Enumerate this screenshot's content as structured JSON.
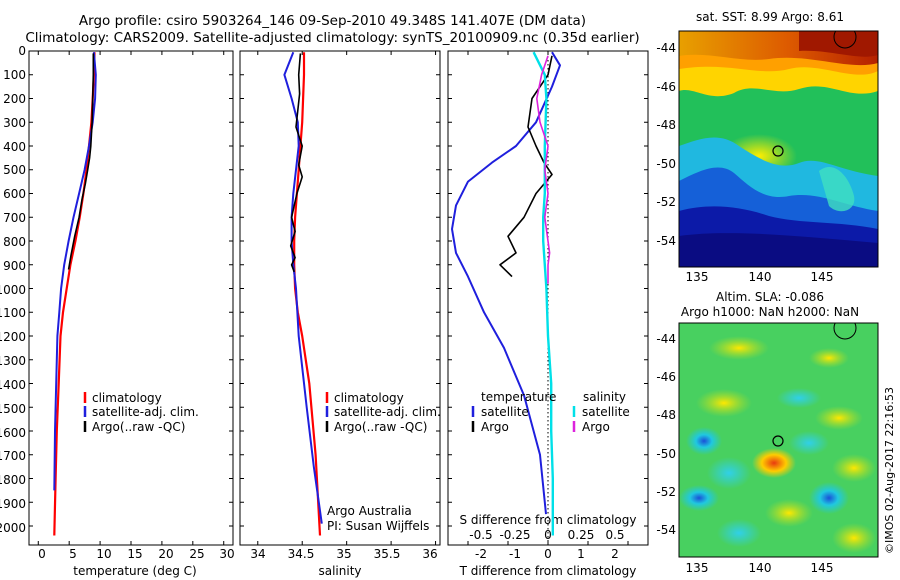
{
  "header": {
    "title_line1": "Argo profile: csiro 5903264_146 09-Sep-2010 49.348S 141.407E (DM data)",
    "title_line2": "Climatology: CARS2009. Satellite-adjusted climatology: synTS_20100909.nc (0.35d earlier)"
  },
  "colors": {
    "climatology": "#ff0000",
    "satellite": "#1f1fdd",
    "argo": "#000000",
    "salinity_satellite": "#00e0e8",
    "salinity_argo": "#dd22dd"
  },
  "footer": {
    "credit": "©IMOS 02-Aug-2017 22:16:53",
    "source_label_line1": "Argo Australia",
    "source_label_line2": "PI: Susan Wijffels"
  },
  "chart_data": [
    {
      "type": "line",
      "xlabel": "temperature (deg C)",
      "ylabel": "",
      "xlim": [
        -1.5,
        31.5
      ],
      "ylim": [
        2080,
        0
      ],
      "y_inverted": true,
      "x_ticks": [
        "0",
        "5",
        "10",
        "15",
        "20",
        "25",
        "30"
      ],
      "y_ticks": [
        "0",
        "100",
        "200",
        "300",
        "400",
        "500",
        "600",
        "700",
        "800",
        "900",
        "1000",
        "1100",
        "1200",
        "1300",
        "1400",
        "1500",
        "1600",
        "1700",
        "1800",
        "1900",
        "2000"
      ],
      "legend": {
        "placement": "center",
        "entries": [
          "climatology",
          "satellite-adj. clim.",
          "Argo(..raw -QC)"
        ]
      },
      "series": [
        {
          "name": "climatology",
          "color": "#ff0000",
          "x": [
            9.1,
            9.0,
            8.8,
            8.6,
            8.2,
            7.8,
            7.3,
            6.7,
            6.0,
            5.2,
            4.6,
            4.0,
            3.6,
            3.3,
            3.0,
            2.8,
            2.6
          ],
          "y": [
            5,
            100,
            200,
            300,
            400,
            500,
            600,
            700,
            800,
            900,
            1000,
            1100,
            1200,
            1400,
            1600,
            1800,
            2040
          ]
        },
        {
          "name": "satellite-adj. clim.",
          "color": "#1f1fdd",
          "x": [
            9.0,
            9.3,
            9.2,
            8.8,
            8.2,
            7.5,
            6.6,
            5.7,
            4.9,
            4.2,
            3.7,
            3.4,
            3.1,
            2.9,
            2.7,
            2.6
          ],
          "y": [
            5,
            100,
            200,
            300,
            400,
            500,
            600,
            700,
            800,
            900,
            1000,
            1100,
            1200,
            1400,
            1600,
            1850
          ]
        },
        {
          "name": "Argo(..raw -QC)",
          "color": "#000000",
          "x": [
            8.9,
            8.9,
            8.8,
            8.7,
            8.5,
            8.3,
            8.0,
            7.6,
            7.1,
            6.6,
            5.9,
            5.3,
            4.9
          ],
          "y": [
            10,
            100,
            200,
            300,
            400,
            450,
            500,
            560,
            620,
            700,
            780,
            860,
            920
          ]
        }
      ]
    },
    {
      "type": "line",
      "xlabel": "salinity",
      "ylabel": "",
      "xlim": [
        33.8,
        36.05
      ],
      "ylim": [
        2080,
        0
      ],
      "y_inverted": true,
      "x_ticks": [
        "34",
        "34.5",
        "35",
        "35.5",
        "36"
      ],
      "legend": {
        "placement": "center",
        "entries": [
          "climatology",
          "satellite-adj. clim.",
          "Argo(..raw -QC)"
        ]
      },
      "series": [
        {
          "name": "climatology",
          "color": "#ff0000",
          "x": [
            34.52,
            34.52,
            34.51,
            34.5,
            34.48,
            34.46,
            34.44,
            34.42,
            34.41,
            34.41,
            34.42,
            34.45,
            34.5,
            34.58,
            34.65,
            34.7
          ],
          "y": [
            5,
            100,
            200,
            300,
            400,
            500,
            600,
            700,
            800,
            900,
            1000,
            1100,
            1200,
            1400,
            1700,
            2040
          ]
        },
        {
          "name": "satellite-adj. clim.",
          "color": "#1f1fdd",
          "x": [
            34.4,
            34.3,
            34.38,
            34.45,
            34.46,
            34.43,
            34.4,
            34.38,
            34.38,
            34.4,
            34.43,
            34.46,
            34.55,
            34.63,
            34.72
          ],
          "y": [
            5,
            100,
            200,
            300,
            400,
            500,
            600,
            700,
            800,
            900,
            1000,
            1200,
            1500,
            1750,
            1990
          ]
        },
        {
          "name": "Argo(..raw -QC)",
          "color": "#000000",
          "x": [
            34.48,
            34.46,
            34.47,
            34.43,
            34.5,
            34.46,
            34.5,
            34.44,
            34.38,
            34.42,
            34.37,
            34.42,
            34.38,
            34.41
          ],
          "y": [
            10,
            100,
            180,
            320,
            400,
            480,
            530,
            600,
            700,
            760,
            820,
            870,
            900,
            930
          ]
        }
      ]
    },
    {
      "type": "line",
      "xlabel": "T difference from climatology",
      "secondary_xlabel": "S difference from climatology",
      "xlim": [
        -2.5,
        2.5
      ],
      "secondary_xlim": [
        -0.625,
        0.625
      ],
      "ylim": [
        2080,
        0
      ],
      "y_inverted": true,
      "x_ticks": [
        "-2",
        "-1",
        "0",
        "1",
        "2"
      ],
      "secondary_x_ticks": [
        "-0.5",
        "-0.25",
        "0",
        "0.25",
        "0.5"
      ],
      "zero_line": "dotted",
      "legend": {
        "placement": "center",
        "temperature_header": "temperature",
        "salinity_header": "salinity",
        "entries": [
          "satellite",
          "Argo",
          "satellite",
          "Argo"
        ]
      },
      "series": [
        {
          "name": "temperature satellite",
          "color": "#1f1fdd",
          "x": [
            0.1,
            0.3,
            0.1,
            -0.3,
            -0.8,
            -1.4,
            -2.0,
            -2.3,
            -2.4,
            -2.3,
            -2.0,
            -1.6,
            -1.1,
            -0.6,
            -0.2,
            -0.05
          ],
          "y": [
            5,
            60,
            150,
            300,
            400,
            470,
            550,
            650,
            750,
            850,
            950,
            1100,
            1250,
            1450,
            1700,
            1950
          ]
        },
        {
          "name": "temperature Argo",
          "color": "#000000",
          "x": [
            0.1,
            0.0,
            -0.4,
            -0.5,
            -0.3,
            -0.1,
            0.1,
            -0.3,
            -0.6,
            -1.0,
            -0.8,
            -1.2,
            -0.9
          ],
          "y": [
            20,
            100,
            200,
            320,
            400,
            470,
            520,
            600,
            700,
            780,
            850,
            900,
            950
          ]
        },
        {
          "name": "salinity satellite",
          "color": "#00e0e8",
          "x": [
            -0.09,
            -0.02,
            -0.01,
            -0.02,
            -0.02,
            -0.03,
            -0.03,
            -0.02,
            -0.01,
            0.0,
            0.02,
            0.02,
            0.03,
            0.03
          ],
          "y": [
            5,
            100,
            200,
            400,
            600,
            700,
            800,
            900,
            1000,
            1200,
            1400,
            1600,
            1800,
            2040
          ]
        },
        {
          "name": "salinity Argo",
          "color": "#dd22dd",
          "x": [
            0.0,
            -0.04,
            -0.07,
            -0.05,
            0.0,
            -0.02,
            0.0,
            -0.02,
            0.0,
            0.01,
            0.0,
            0.0
          ],
          "y": [
            20,
            100,
            200,
            300,
            400,
            500,
            600,
            700,
            800,
            850,
            900,
            980
          ]
        }
      ]
    },
    {
      "type": "heatmap",
      "title": "sat. SST: 8.99 Argo: 8.61",
      "x_ticks": [
        "135",
        "140",
        "145"
      ],
      "y_ticks": [
        "-44",
        "-46",
        "-48",
        "-50",
        "-52",
        "-54"
      ],
      "xlim": [
        133.5,
        149.5
      ],
      "ylim": [
        -55.5,
        -43.2
      ],
      "marker": {
        "lon": 141.4,
        "lat": -49.35
      },
      "colormap": "jet",
      "colorscale": "none"
    },
    {
      "type": "heatmap",
      "title": "Altim. SLA: -0.086",
      "subtitle": "Argo h1000: NaN h2000: NaN",
      "x_ticks": [
        "135",
        "140",
        "145"
      ],
      "y_ticks": [
        "-44",
        "-46",
        "-48",
        "-50",
        "-52",
        "-54"
      ],
      "xlim": [
        133.5,
        149.5
      ],
      "ylim": [
        -55.5,
        -43.2
      ],
      "marker": {
        "lon": 141.4,
        "lat": -49.35
      },
      "colormap": "jet",
      "colorscale": "none"
    }
  ]
}
